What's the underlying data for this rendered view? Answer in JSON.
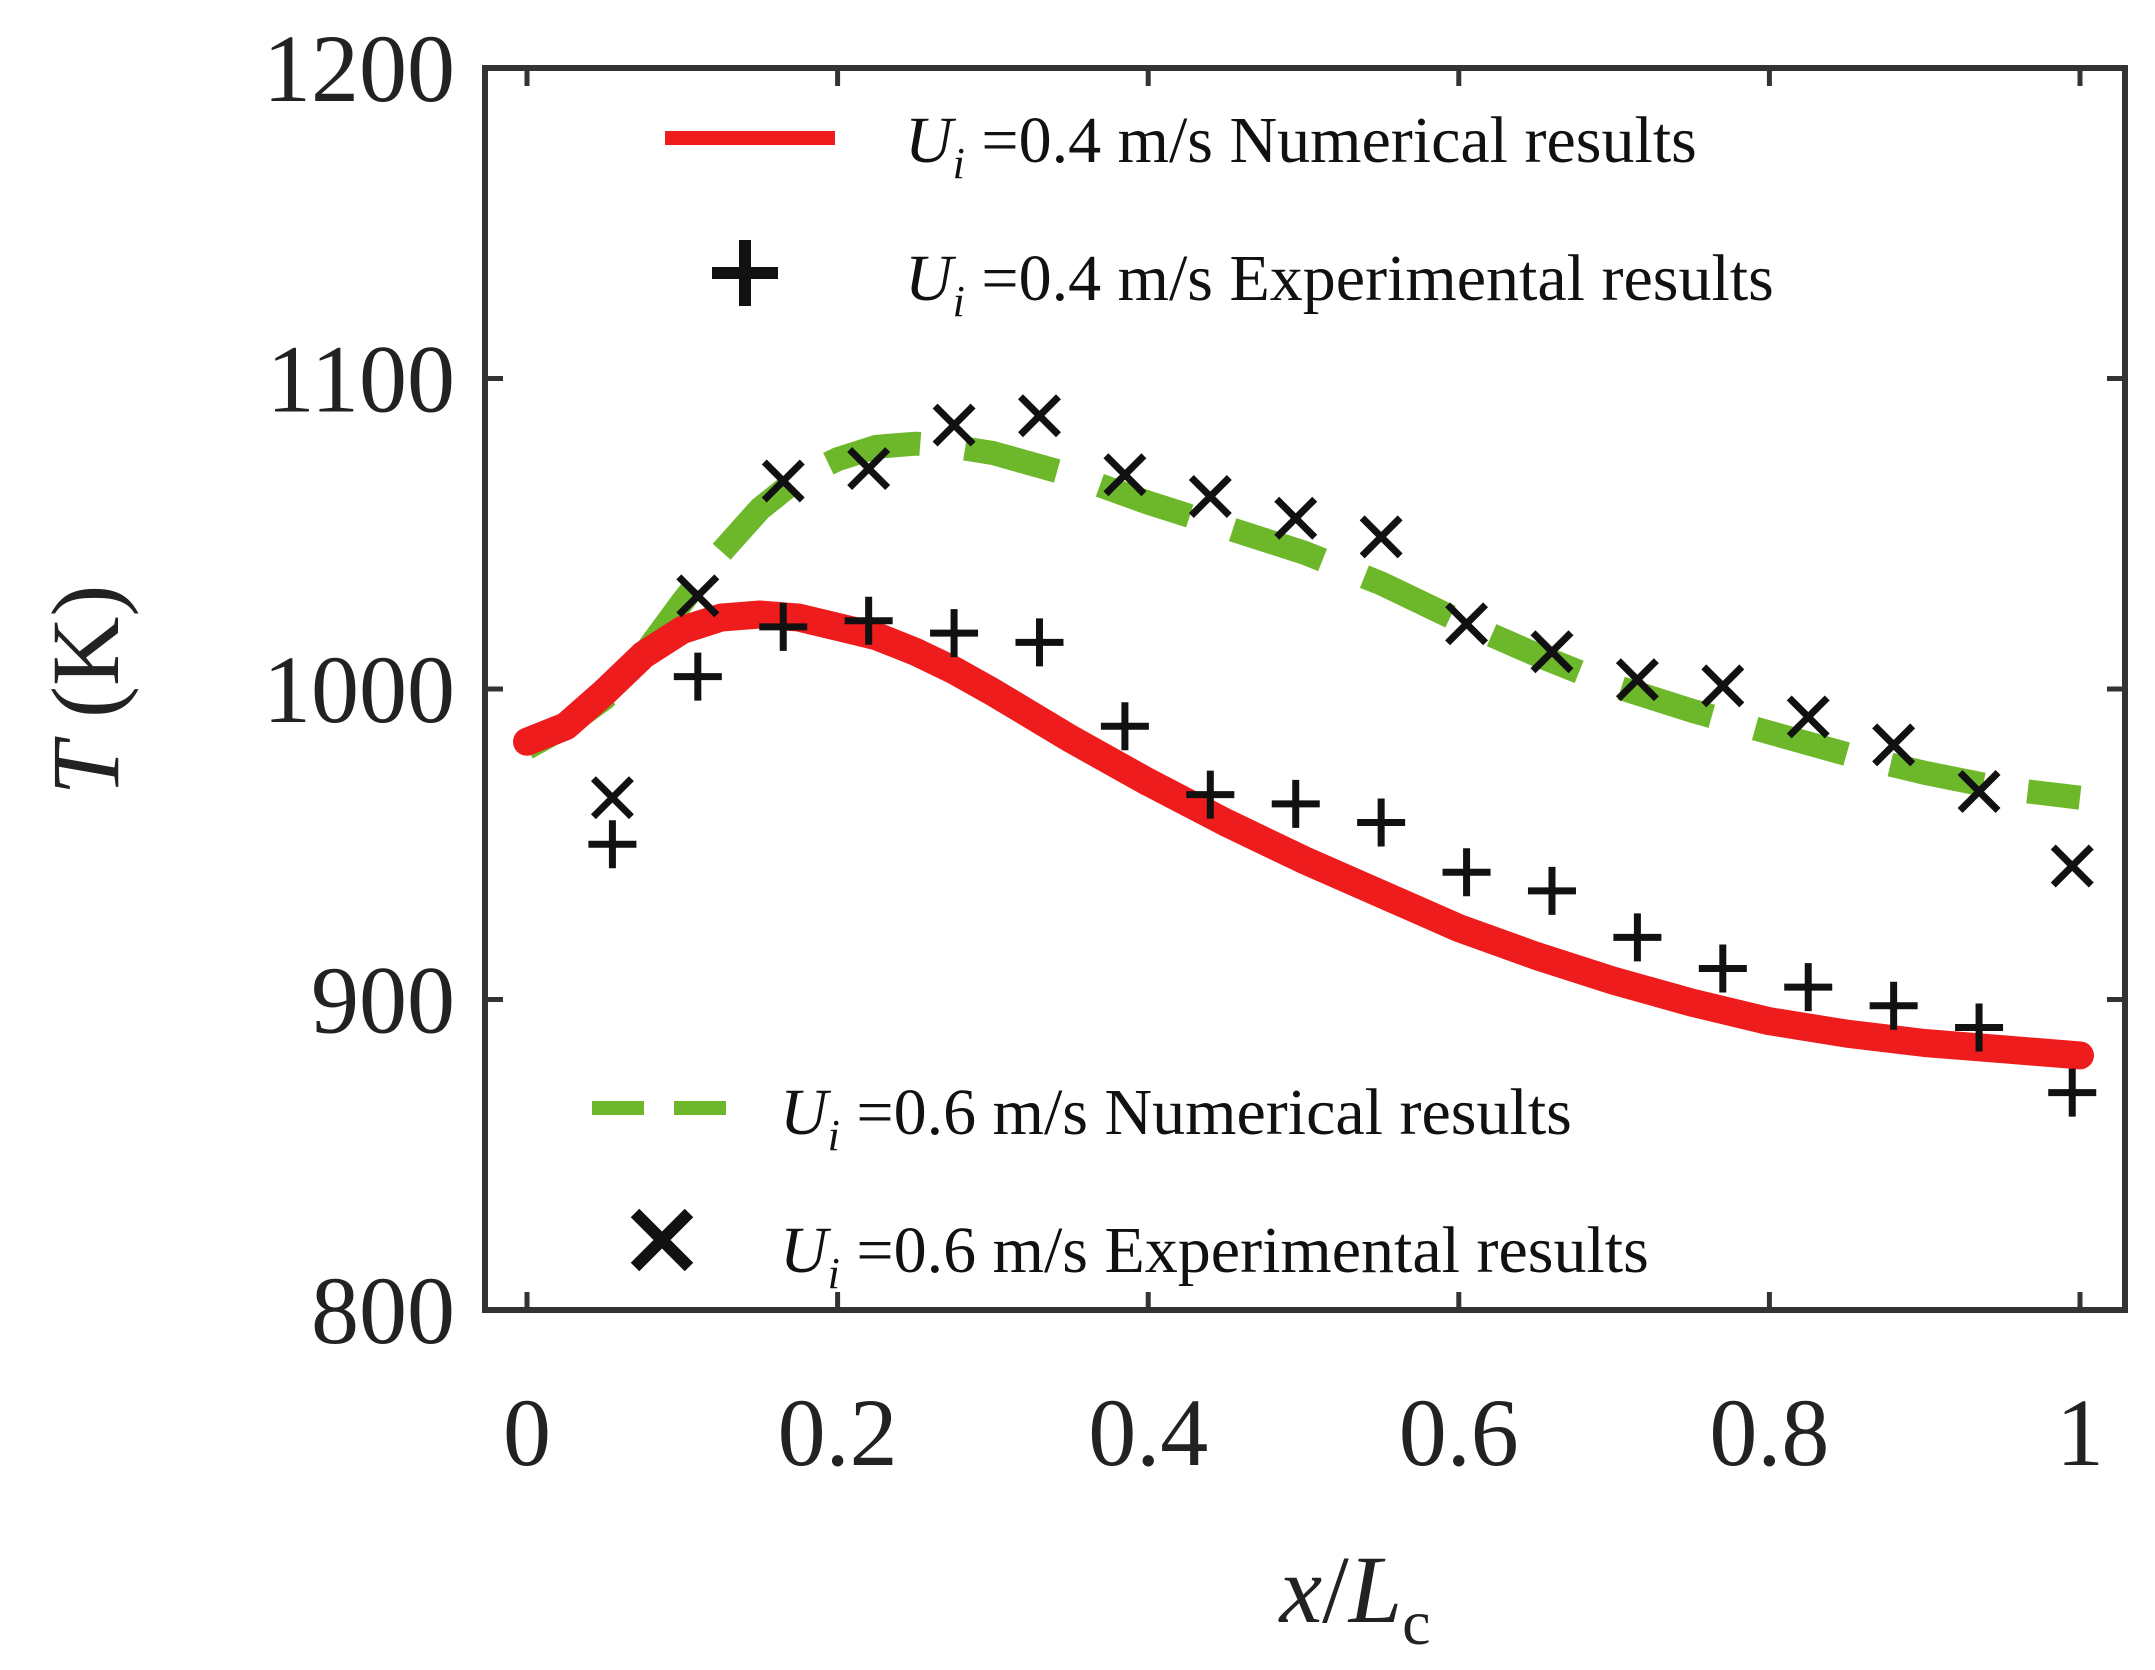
{
  "chart_data": {
    "type": "line",
    "title": "",
    "xlabel": {
      "var": "x",
      "slash": "/",
      "base": "L",
      "sub": "c"
    },
    "ylabel": {
      "var": "T",
      "unit": " (K)"
    },
    "xlim": [
      0,
      1
    ],
    "ylim": [
      800,
      1200
    ],
    "xticks": [
      0,
      0.2,
      0.4,
      0.6,
      0.8,
      1
    ],
    "xtick_labels": [
      "0",
      "0.2",
      "0.4",
      "0.6",
      "0.8",
      "1"
    ],
    "yticks": [
      800,
      900,
      1000,
      1100,
      1200
    ],
    "ytick_labels": [
      "800",
      "900",
      "1000",
      "1100",
      "1200"
    ],
    "grid": false,
    "legend": {
      "top": [
        {
          "symbol": "U",
          "sub": "i",
          "text": " =0.4 m/s  Numerical results",
          "series": "num_04"
        },
        {
          "symbol": "U",
          "sub": "i",
          "text": " =0.4 m/s  Experimental results",
          "series": "exp_04"
        }
      ],
      "bottom": [
        {
          "symbol": "U",
          "sub": "i",
          "text": " =0.6 m/s  Numerical results",
          "series": "num_06"
        },
        {
          "symbol": "U",
          "sub": "i",
          "text": " =0.6 m/s  Experimental results",
          "series": "exp_06"
        }
      ]
    },
    "series": [
      {
        "id": "num_04",
        "name": "Ui =0.4 m/s Numerical results",
        "style": "line",
        "color": "#ee1c1c",
        "x": [
          0,
          0.025,
          0.05,
          0.075,
          0.1,
          0.125,
          0.15,
          0.175,
          0.2,
          0.225,
          0.25,
          0.275,
          0.3,
          0.35,
          0.4,
          0.45,
          0.5,
          0.55,
          0.6,
          0.65,
          0.7,
          0.75,
          0.8,
          0.85,
          0.9,
          0.95,
          1.0
        ],
        "y": [
          983,
          988,
          999,
          1011,
          1019,
          1023,
          1024,
          1023,
          1020,
          1017,
          1012,
          1006,
          999,
          984,
          970,
          957,
          945,
          934,
          923,
          914,
          906,
          899,
          893,
          889,
          886,
          884,
          882
        ]
      },
      {
        "id": "num_06",
        "name": "Ui =0.6 m/s Numerical results",
        "style": "dashed",
        "color": "#6db82a",
        "x": [
          0,
          0.025,
          0.05,
          0.075,
          0.1,
          0.125,
          0.15,
          0.175,
          0.2,
          0.225,
          0.25,
          0.275,
          0.3,
          0.35,
          0.4,
          0.45,
          0.5,
          0.55,
          0.6,
          0.65,
          0.7,
          0.75,
          0.8,
          0.85,
          0.9,
          0.95,
          1.0
        ],
        "y": [
          981,
          988,
          997,
          1011,
          1028,
          1044,
          1058,
          1068,
          1074,
          1078,
          1079,
          1078,
          1076,
          1069,
          1060,
          1052,
          1044,
          1034,
          1022,
          1011,
          1001,
          993,
          986,
          979,
          973,
          968,
          965
        ]
      },
      {
        "id": "exp_04",
        "name": "Ui =0.4 m/s Experimental results",
        "style": "marker-plus",
        "color": "#111111",
        "x": [
          0.055,
          0.11,
          0.165,
          0.22,
          0.275,
          0.33,
          0.385,
          0.44,
          0.495,
          0.55,
          0.605,
          0.66,
          0.715,
          0.77,
          0.825,
          0.88,
          0.935,
          0.995
        ],
        "y": [
          950,
          1004,
          1020,
          1022,
          1018,
          1015,
          988,
          966,
          963,
          957,
          941,
          935,
          920,
          910,
          904,
          898,
          891,
          870
        ]
      },
      {
        "id": "exp_06",
        "name": "Ui =0.6 m/s Experimental results",
        "style": "marker-x",
        "color": "#111111",
        "x": [
          0.055,
          0.11,
          0.165,
          0.22,
          0.275,
          0.33,
          0.385,
          0.44,
          0.495,
          0.55,
          0.605,
          0.66,
          0.715,
          0.77,
          0.825,
          0.88,
          0.935,
          0.995
        ],
        "y": [
          965,
          1030,
          1067,
          1071,
          1085,
          1088,
          1069,
          1062,
          1055,
          1049,
          1021,
          1012,
          1003,
          1001,
          991,
          982,
          967,
          943
        ]
      }
    ]
  }
}
